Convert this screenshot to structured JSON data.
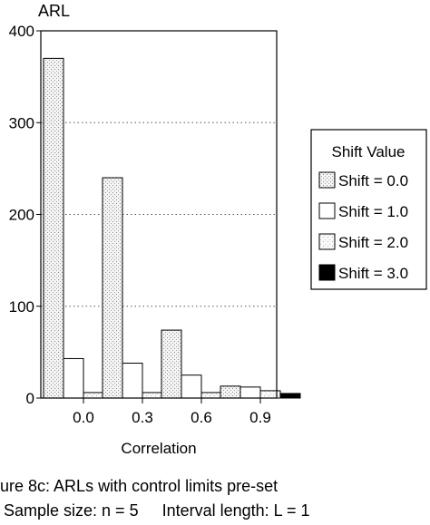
{
  "chart_data": {
    "type": "bar",
    "ylabel": "ARL",
    "xlabel": "Correlation",
    "categories": [
      "0.0",
      "0.3",
      "0.6",
      "0.9"
    ],
    "ylim": [
      0,
      400
    ],
    "yticks": [
      "0",
      "100",
      "200",
      "300",
      "400"
    ],
    "grid": "horizontal dotted",
    "legend": {
      "title": "Shift Value",
      "placement": "right"
    },
    "series": [
      {
        "name": "Shift = 0.0",
        "values": [
          370,
          240,
          74,
          13
        ],
        "fill": "#e2e2e2"
      },
      {
        "name": "Shift = 1.0",
        "values": [
          43,
          38,
          25,
          12
        ],
        "fill": "#ffffff"
      },
      {
        "name": "Shift = 2.0",
        "values": [
          6,
          6,
          6,
          8
        ],
        "fill": "#ececec"
      },
      {
        "name": "Shift = 3.0",
        "values": [
          2,
          2,
          2,
          5
        ],
        "fill": "#000000"
      }
    ]
  },
  "caption": {
    "line1": "gure 8c: ARLs with control limits pre-set",
    "line2a": "Sample size: n = 5",
    "line2b": "Interval length: L = 1"
  }
}
